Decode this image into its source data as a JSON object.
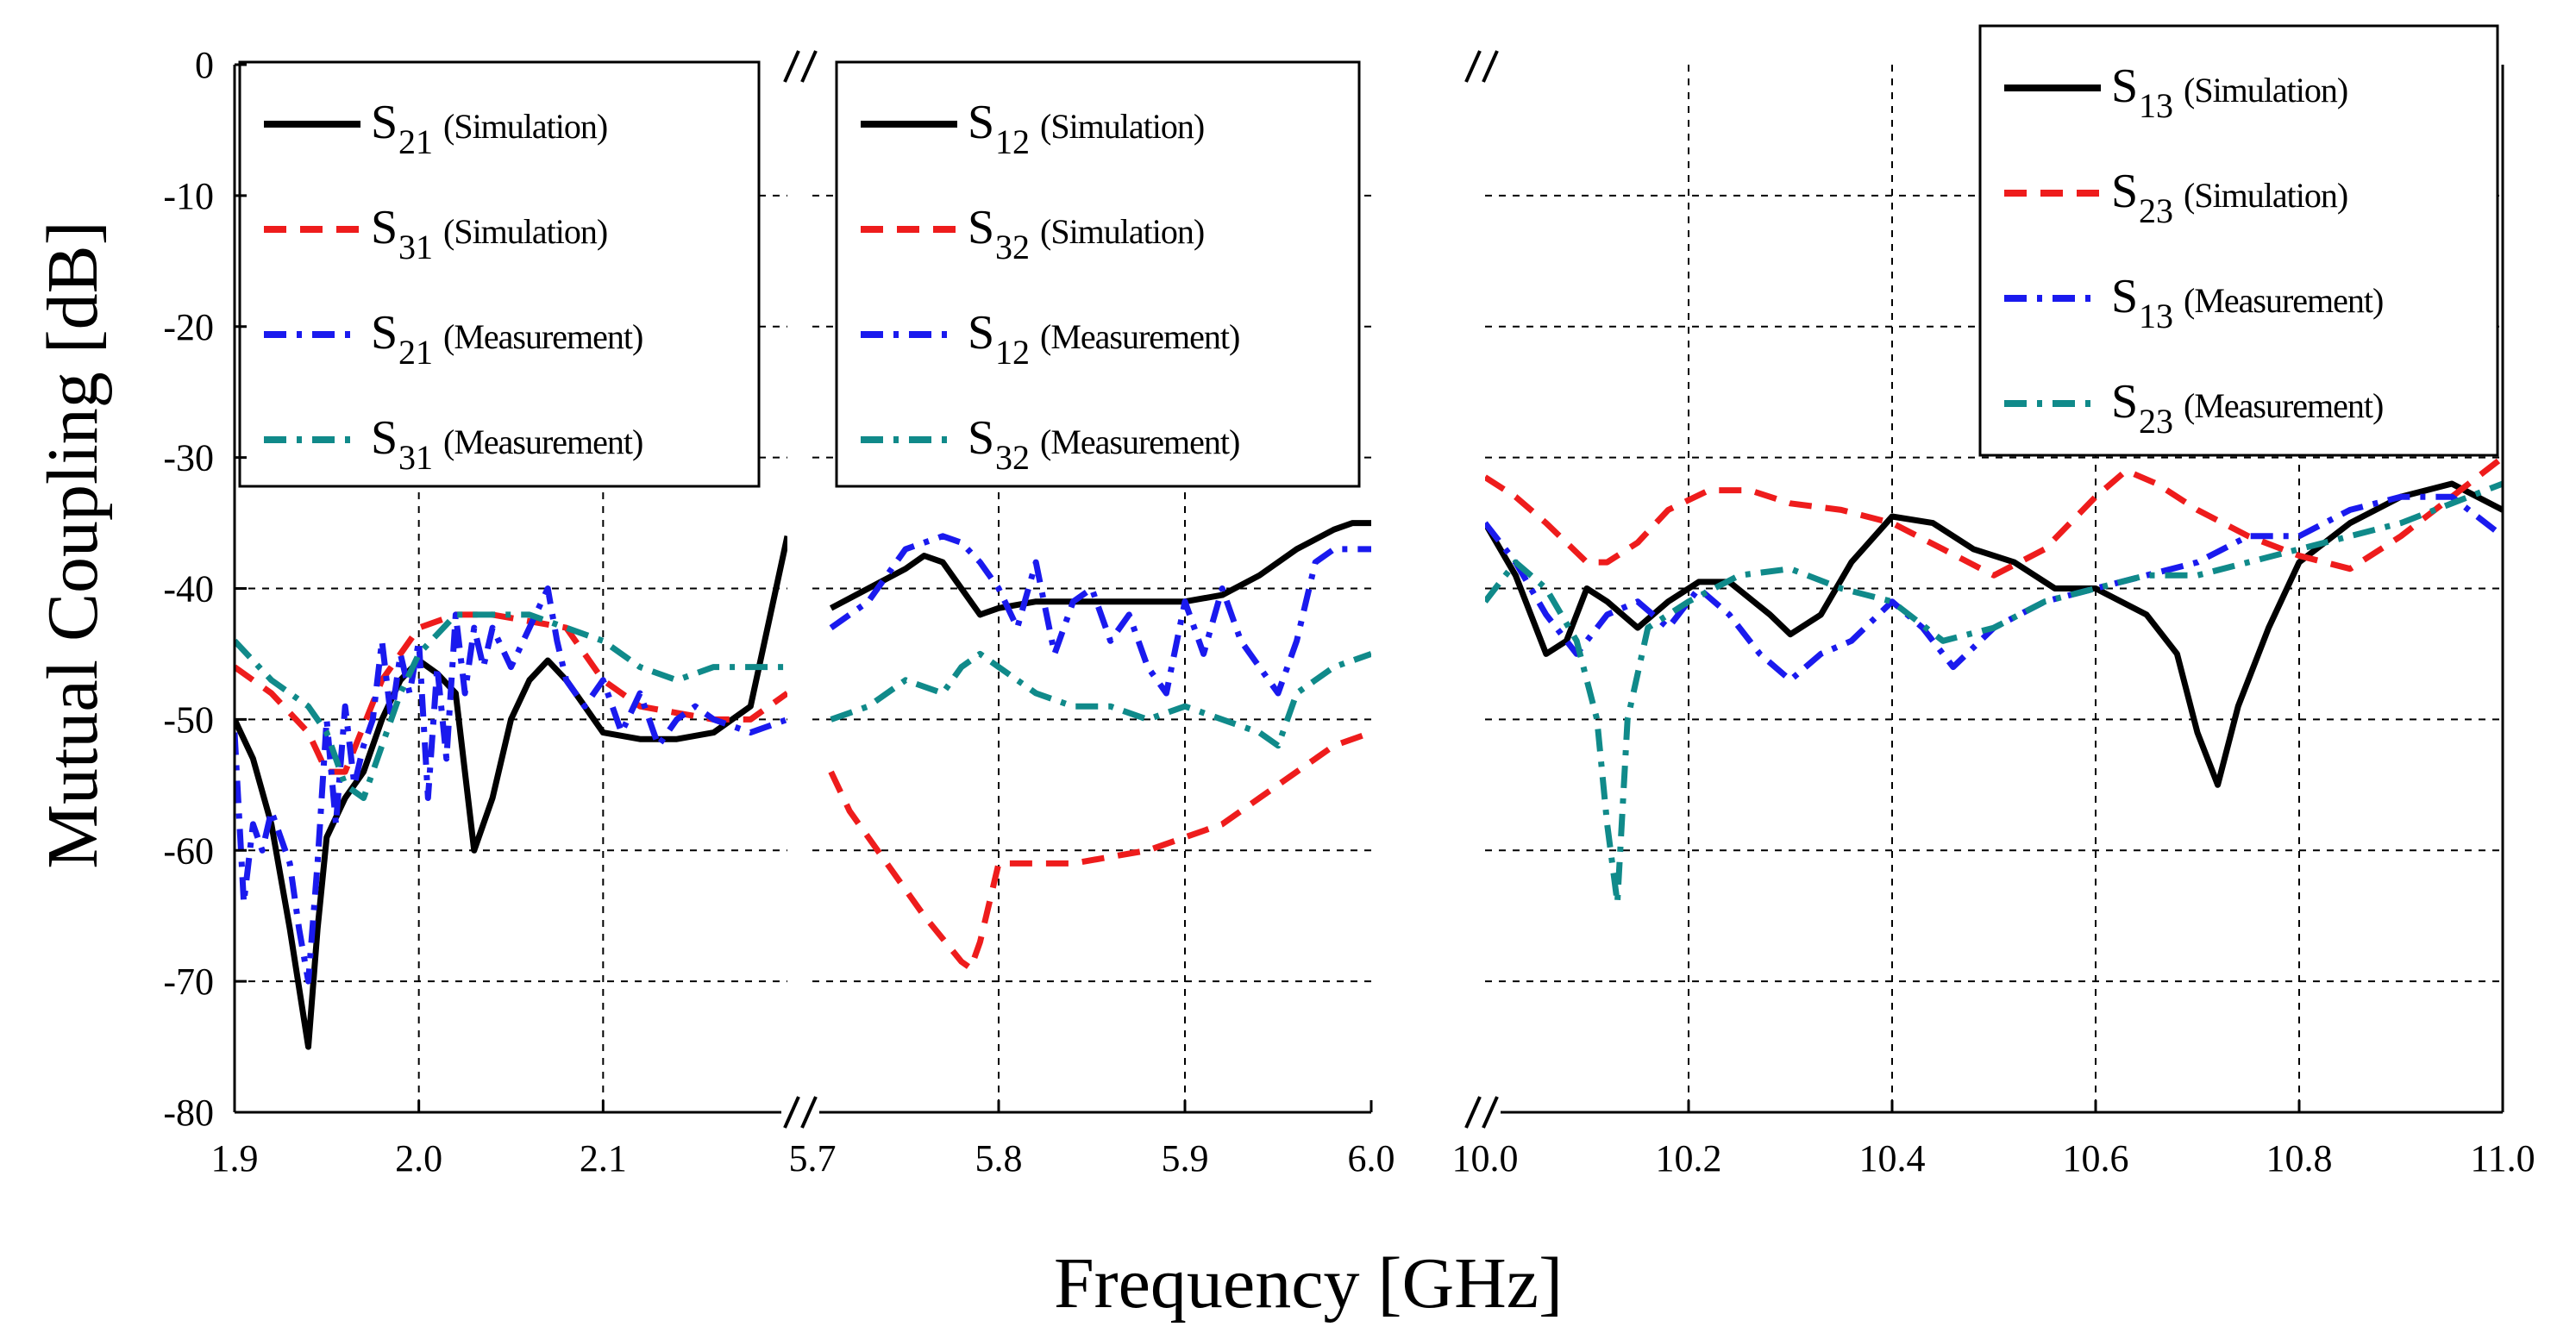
{
  "chart_data": {
    "type": "line",
    "xlabel": "Frequency [GHz]",
    "ylabel": "Mutual Coupling [dB]",
    "ylim": [
      -80,
      0
    ],
    "yticks": [
      "0",
      "-10",
      "-20",
      "-30",
      "-40",
      "-50",
      "-60",
      "-70",
      "-80"
    ],
    "grid": true,
    "panels": [
      {
        "xlim": [
          1.9,
          2.2
        ],
        "xticks": [
          1.9,
          2.0,
          2.1
        ],
        "xtick_labels": [
          "1.9",
          "2.0",
          "2.1"
        ],
        "legend_position": "top",
        "series": [
          {
            "name": "S21 (Simulation)",
            "symbol": "S",
            "subscript": "21",
            "note": "(Simulation)",
            "color": "#000000",
            "style": "solid",
            "x": [
              1.9,
              1.91,
              1.92,
              1.93,
              1.94,
              1.945,
              1.95,
              1.96,
              1.97,
              1.98,
              1.99,
              2.0,
              2.01,
              2.02,
              2.03,
              2.04,
              2.05,
              2.06,
              2.07,
              2.08,
              2.09,
              2.1,
              2.12,
              2.14,
              2.16,
              2.18,
              2.2
            ],
            "y": [
              -50,
              -53,
              -58,
              -66,
              -75,
              -66,
              -59,
              -56,
              -54,
              -50,
              -47,
              -45.5,
              -46.5,
              -48,
              -60,
              -56,
              -50,
              -47,
              -45.5,
              -47,
              -49,
              -51,
              -51.5,
              -51.5,
              -51,
              -49,
              -36
            ]
          },
          {
            "name": "S31 (Simulation)",
            "symbol": "S",
            "subscript": "31",
            "note": "(Simulation)",
            "color": "#ee1c1c",
            "style": "dash",
            "x": [
              1.9,
              1.92,
              1.94,
              1.95,
              1.96,
              1.98,
              2.0,
              2.02,
              2.04,
              2.06,
              2.08,
              2.1,
              2.12,
              2.14,
              2.16,
              2.18,
              2.2
            ],
            "y": [
              -46,
              -48,
              -51,
              -54,
              -54,
              -47,
              -43,
              -42,
              -42,
              -42.5,
              -43,
              -47,
              -49,
              -49.5,
              -50,
              -50,
              -48
            ]
          },
          {
            "name": "S21 (Measurement)",
            "symbol": "S",
            "subscript": "21",
            "note": "(Measurement)",
            "color": "#1a1aee",
            "style": "dashdot",
            "x": [
              1.9,
              1.905,
              1.91,
              1.915,
              1.92,
              1.93,
              1.935,
              1.94,
              1.945,
              1.95,
              1.955,
              1.96,
              1.965,
              1.97,
              1.975,
              1.98,
              1.985,
              1.99,
              1.995,
              2.0,
              2.005,
              2.01,
              2.015,
              2.02,
              2.025,
              2.03,
              2.035,
              2.04,
              2.05,
              2.06,
              2.07,
              2.075,
              2.08,
              2.09,
              2.1,
              2.11,
              2.12,
              2.13,
              2.14,
              2.15,
              2.16,
              2.18,
              2.2
            ],
            "y": [
              -51,
              -64,
              -58,
              -60,
              -57,
              -61,
              -66,
              -70,
              -61,
              -50,
              -58,
              -49,
              -55,
              -52,
              -50,
              -44,
              -50,
              -45,
              -48,
              -44,
              -56,
              -46,
              -53,
              -42,
              -48,
              -43,
              -46,
              -43,
              -46,
              -43,
              -40,
              -44,
              -47,
              -49,
              -47,
              -51,
              -48,
              -52,
              -50,
              -49,
              -50,
              -51,
              -50
            ]
          },
          {
            "name": "S31 (Measurement)",
            "symbol": "S",
            "subscript": "31",
            "note": "(Measurement)",
            "color": "#108a8a",
            "style": "dashdot",
            "x": [
              1.9,
              1.92,
              1.94,
              1.95,
              1.96,
              1.97,
              1.98,
              1.99,
              2.0,
              2.02,
              2.04,
              2.06,
              2.08,
              2.1,
              2.12,
              2.14,
              2.16,
              2.18,
              2.2
            ],
            "y": [
              -44,
              -47,
              -49,
              -51,
              -55,
              -56,
              -52,
              -48,
              -45,
              -42,
              -42,
              -42,
              -43,
              -44,
              -46,
              -47,
              -46,
              -46,
              -46
            ]
          }
        ]
      },
      {
        "xlim": [
          5.7,
          6.0
        ],
        "xticks": [
          5.7,
          5.8,
          5.9,
          6.0
        ],
        "xtick_labels": [
          "5.7",
          "5.8",
          "5.9",
          "6.0"
        ],
        "legend_position": "top",
        "series": [
          {
            "name": "S12 (Simulation)",
            "symbol": "S",
            "subscript": "12",
            "note": "(Simulation)",
            "color": "#000000",
            "style": "solid",
            "x": [
              5.71,
              5.73,
              5.75,
              5.76,
              5.77,
              5.78,
              5.79,
              5.8,
              5.82,
              5.84,
              5.86,
              5.88,
              5.9,
              5.92,
              5.94,
              5.96,
              5.98,
              5.99,
              6.0
            ],
            "y": [
              -41.5,
              -40,
              -38.5,
              -37.5,
              -38,
              -40,
              -42,
              -41.5,
              -41,
              -41,
              -41,
              -41,
              -41,
              -40.5,
              -39,
              -37,
              -35.5,
              -35,
              -35
            ]
          },
          {
            "name": "S32 (Simulation)",
            "symbol": "S",
            "subscript": "32",
            "note": "(Simulation)",
            "color": "#ee1c1c",
            "style": "dash",
            "x": [
              5.71,
              5.72,
              5.74,
              5.76,
              5.78,
              5.785,
              5.79,
              5.8,
              5.82,
              5.84,
              5.86,
              5.88,
              5.9,
              5.92,
              5.94,
              5.96,
              5.98,
              6.0
            ],
            "y": [
              -54,
              -57,
              -61,
              -65,
              -68.5,
              -69,
              -67,
              -61,
              -61,
              -61,
              -60.5,
              -60,
              -59,
              -58,
              -56,
              -54,
              -52,
              -51
            ]
          },
          {
            "name": "S12 (Measurement)",
            "symbol": "S",
            "subscript": "12",
            "note": "(Measurement)",
            "color": "#1a1aee",
            "style": "dashdot",
            "x": [
              5.71,
              5.72,
              5.73,
              5.74,
              5.75,
              5.76,
              5.77,
              5.78,
              5.79,
              5.8,
              5.81,
              5.82,
              5.83,
              5.84,
              5.85,
              5.86,
              5.87,
              5.88,
              5.89,
              5.9,
              5.91,
              5.92,
              5.93,
              5.94,
              5.95,
              5.96,
              5.97,
              5.98,
              5.99,
              6.0
            ],
            "y": [
              -43,
              -42,
              -41,
              -39,
              -37,
              -36.5,
              -36,
              -36.5,
              -38,
              -40,
              -43,
              -38,
              -45,
              -41,
              -40,
              -44,
              -42,
              -46,
              -48,
              -41,
              -45,
              -40,
              -44,
              -46,
              -48,
              -44,
              -38,
              -37,
              -37,
              -37
            ]
          },
          {
            "name": "S32 (Measurement)",
            "symbol": "S",
            "subscript": "32",
            "note": "(Measurement)",
            "color": "#108a8a",
            "style": "dashdot",
            "x": [
              5.71,
              5.73,
              5.75,
              5.77,
              5.78,
              5.79,
              5.8,
              5.82,
              5.84,
              5.86,
              5.88,
              5.9,
              5.92,
              5.94,
              5.95,
              5.96,
              5.98,
              6.0
            ],
            "y": [
              -50,
              -49,
              -47,
              -48,
              -46,
              -45,
              -46,
              -48,
              -49,
              -49,
              -50,
              -49,
              -50,
              -51,
              -52,
              -48,
              -46,
              -45
            ]
          }
        ]
      },
      {
        "xlim": [
          10.0,
          11.0
        ],
        "xticks": [
          10.0,
          10.2,
          10.4,
          10.6,
          10.8,
          11.0
        ],
        "xtick_labels": [
          "10.0",
          "10.2",
          "10.4",
          "10.6",
          "10.8",
          "11.0"
        ],
        "legend_position": "top-right",
        "series": [
          {
            "name": "S13 (Simulation)",
            "symbol": "S",
            "subscript": "13",
            "note": "(Simulation)",
            "color": "#000000",
            "style": "solid",
            "x": [
              10.0,
              10.03,
              10.06,
              10.08,
              10.1,
              10.12,
              10.15,
              10.18,
              10.21,
              10.24,
              10.28,
              10.3,
              10.33,
              10.36,
              10.4,
              10.44,
              10.48,
              10.52,
              10.56,
              10.6,
              10.65,
              10.68,
              10.7,
              10.72,
              10.74,
              10.77,
              10.8,
              10.85,
              10.9,
              10.95,
              11.0
            ],
            "y": [
              -35,
              -39,
              -45,
              -44,
              -40,
              -41,
              -43,
              -41,
              -39.5,
              -39.5,
              -42,
              -43.5,
              -42,
              -38,
              -34.5,
              -35,
              -37,
              -38,
              -40,
              -40,
              -42,
              -45,
              -51,
              -55,
              -49,
              -43,
              -38,
              -35,
              -33,
              -32,
              -34
            ]
          },
          {
            "name": "S23 (Simulation)",
            "symbol": "S",
            "subscript": "23",
            "note": "(Simulation)",
            "color": "#ee1c1c",
            "style": "dash",
            "x": [
              10.0,
              10.03,
              10.06,
              10.1,
              10.12,
              10.15,
              10.18,
              10.22,
              10.26,
              10.3,
              10.35,
              10.4,
              10.45,
              10.5,
              10.55,
              10.6,
              10.63,
              10.66,
              10.7,
              10.75,
              10.8,
              10.85,
              10.9,
              10.95,
              11.0
            ],
            "y": [
              -31.5,
              -33,
              -35,
              -38,
              -38,
              -36.5,
              -34,
              -32.5,
              -32.5,
              -33.5,
              -34,
              -35,
              -37,
              -39,
              -37,
              -33,
              -31,
              -32,
              -34,
              -36,
              -37.5,
              -38.5,
              -36,
              -33,
              -30
            ]
          },
          {
            "name": "S13 (Measurement)",
            "symbol": "S",
            "subscript": "13",
            "note": "(Measurement)",
            "color": "#1a1aee",
            "style": "dashdot",
            "x": [
              10.0,
              10.03,
              10.06,
              10.09,
              10.12,
              10.15,
              10.18,
              10.21,
              10.24,
              10.27,
              10.3,
              10.33,
              10.36,
              10.4,
              10.43,
              10.46,
              10.5,
              10.55,
              10.6,
              10.65,
              10.7,
              10.75,
              10.8,
              10.85,
              10.9,
              10.95,
              11.0
            ],
            "y": [
              -35,
              -38,
              -42,
              -45,
              -42,
              -41,
              -43,
              -40,
              -42,
              -45,
              -47,
              -45,
              -44,
              -41,
              -43,
              -46,
              -43,
              -41,
              -40,
              -39,
              -38,
              -36,
              -36,
              -34,
              -33,
              -33,
              -36
            ]
          },
          {
            "name": "S23 (Measurement)",
            "symbol": "S",
            "subscript": "23",
            "note": "(Measurement)",
            "color": "#108a8a",
            "style": "dashdot",
            "x": [
              10.0,
              10.03,
              10.06,
              10.09,
              10.11,
              10.12,
              10.13,
              10.14,
              10.16,
              10.2,
              10.25,
              10.3,
              10.35,
              10.4,
              10.45,
              10.5,
              10.55,
              10.6,
              10.65,
              10.7,
              10.75,
              10.8,
              10.85,
              10.9,
              10.95,
              11.0
            ],
            "y": [
              -41,
              -38,
              -40,
              -44,
              -50,
              -58,
              -64,
              -50,
              -43,
              -41,
              -39,
              -38.5,
              -40,
              -41,
              -44,
              -43,
              -41,
              -40,
              -39,
              -39,
              -38,
              -37,
              -36,
              -35,
              -33.5,
              -32
            ]
          }
        ]
      }
    ]
  }
}
